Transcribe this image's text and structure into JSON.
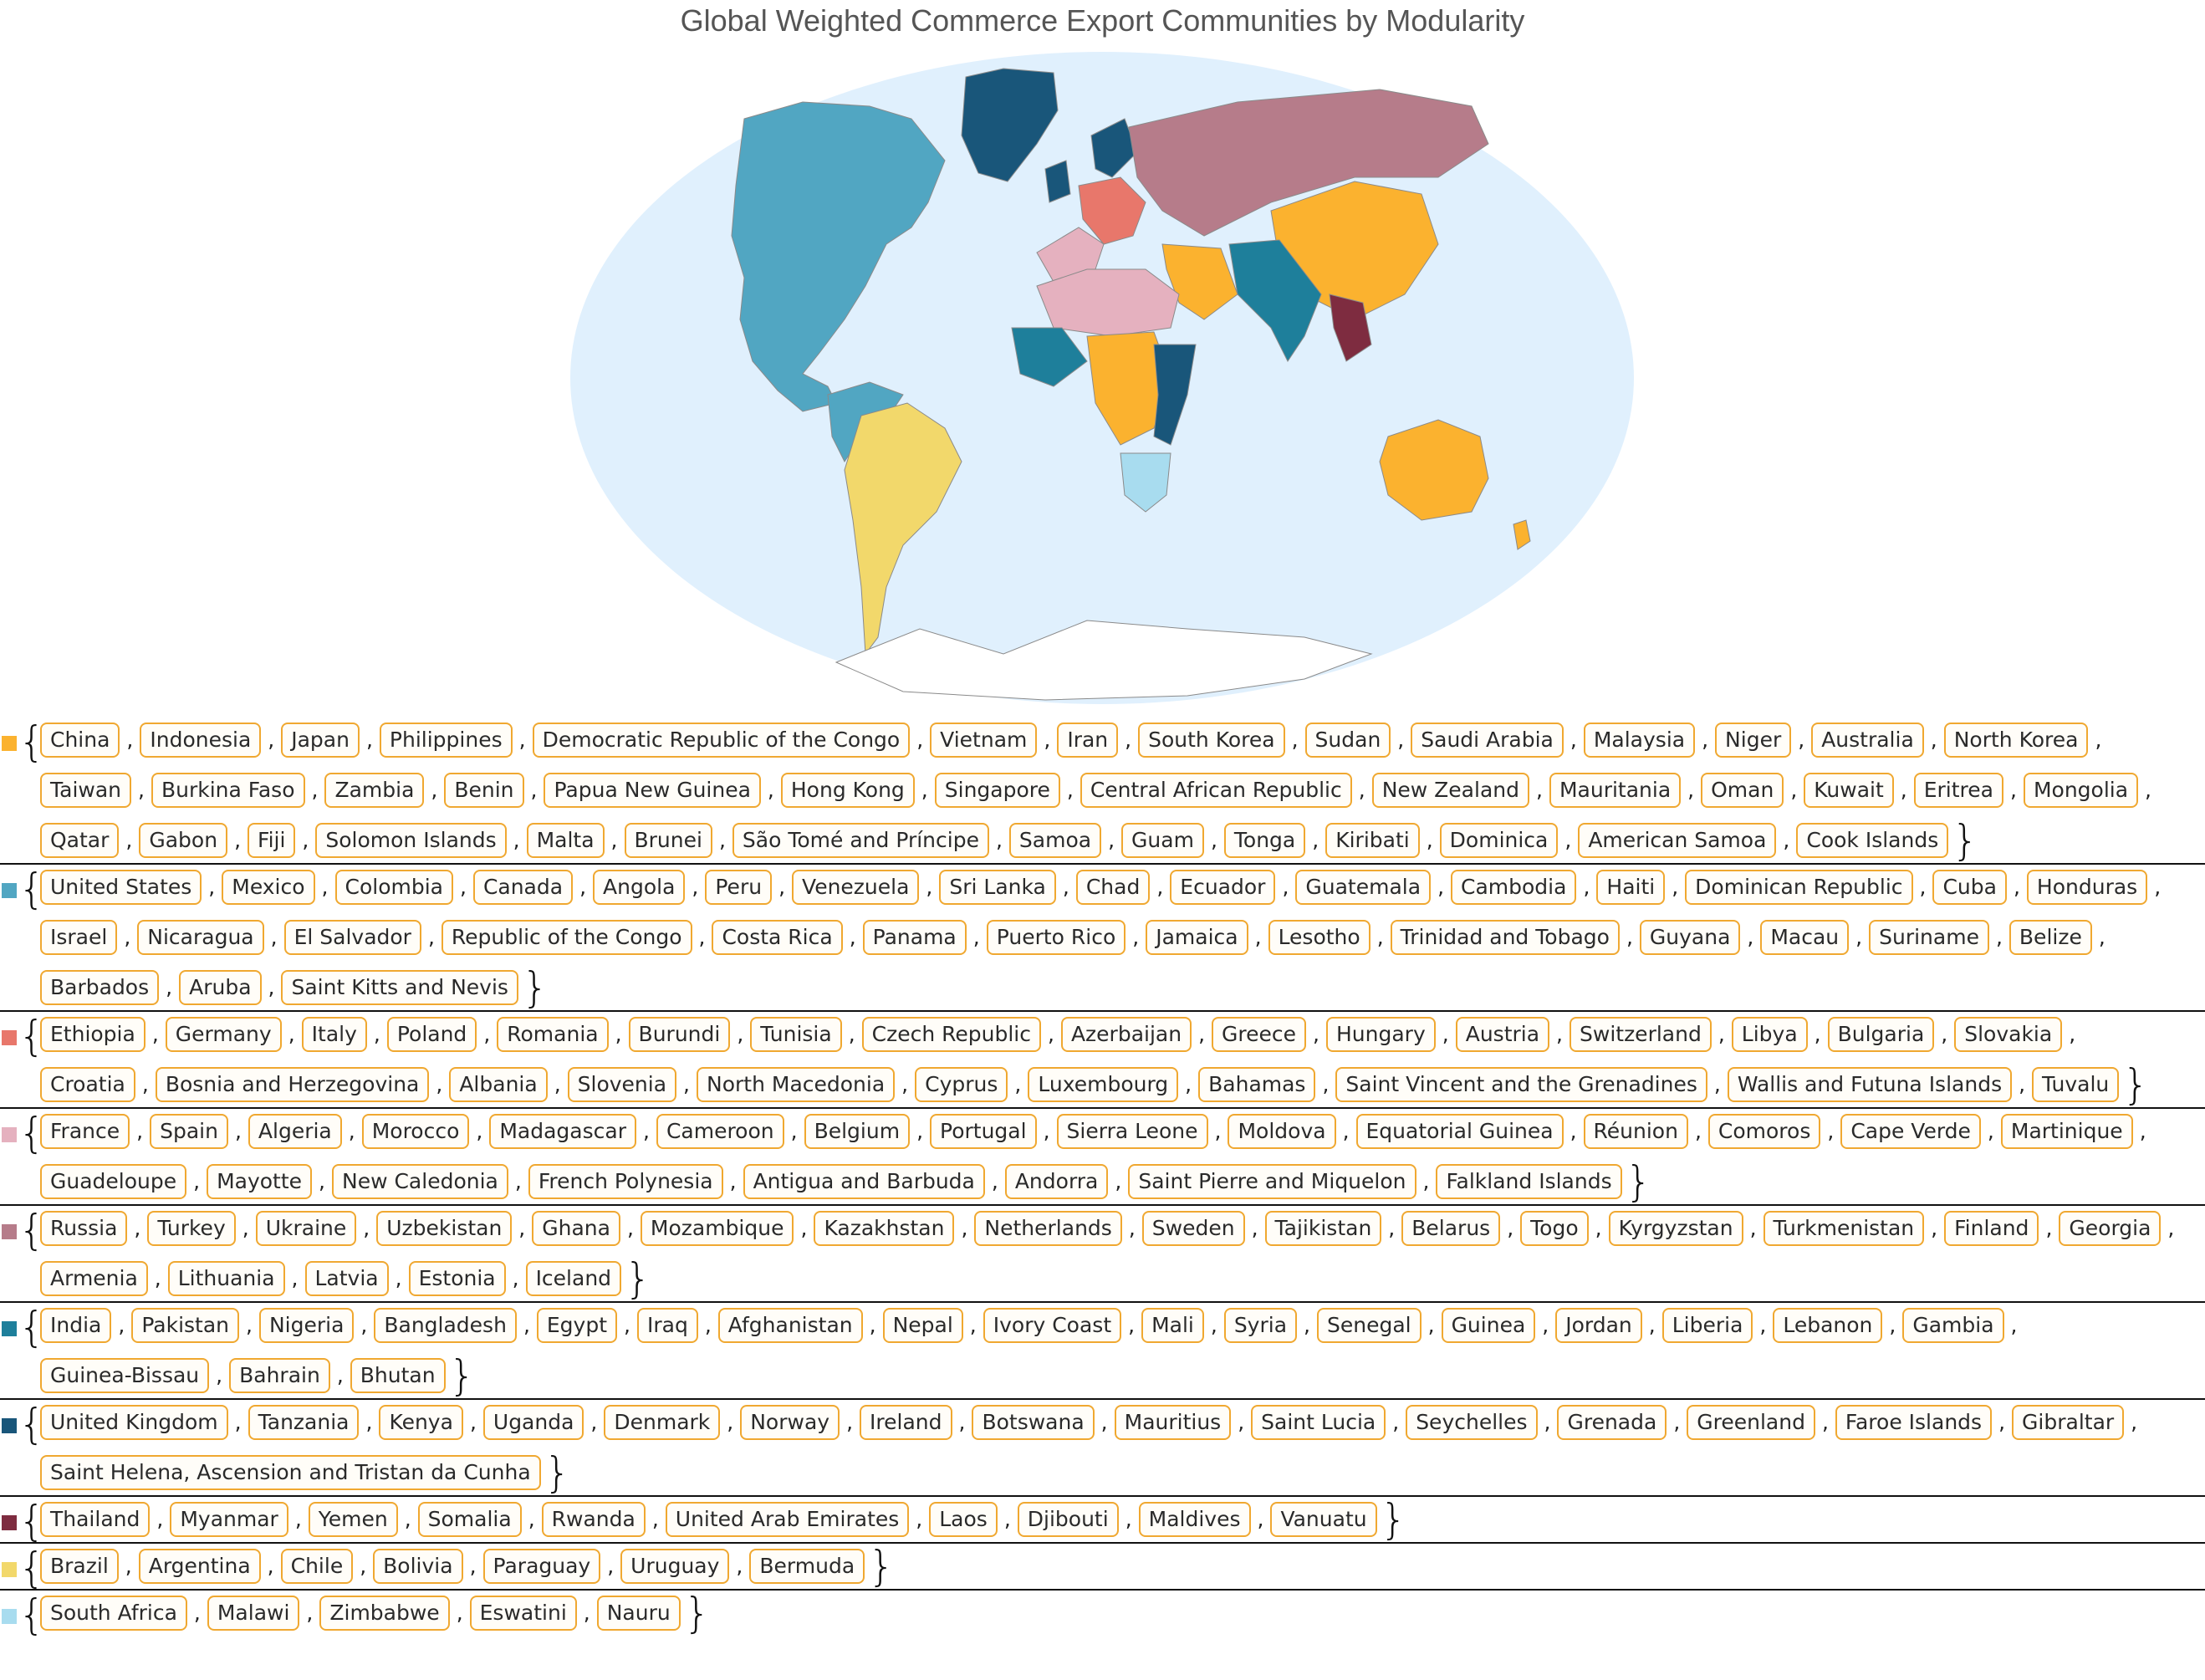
{
  "title": "Global Weighted Commerce Export Communities by Modularity",
  "map": {
    "ocean_color": "#e0f0fd",
    "land_default": "#ffffff",
    "border_color": "#8a8a8a"
  },
  "communities": [
    {
      "color": "#fbb22f",
      "countries": [
        "China",
        "Indonesia",
        "Japan",
        "Philippines",
        "Democratic Republic of the Congo",
        "Vietnam",
        "Iran",
        "South Korea",
        "Sudan",
        "Saudi Arabia",
        "Malaysia",
        "Niger",
        "Australia",
        "North Korea",
        "Taiwan",
        "Burkina Faso",
        "Zambia",
        "Benin",
        "Papua New Guinea",
        "Hong Kong",
        "Singapore",
        "Central African Republic",
        "New Zealand",
        "Mauritania",
        "Oman",
        "Kuwait",
        "Eritrea",
        "Mongolia",
        "Qatar",
        "Gabon",
        "Fiji",
        "Solomon Islands",
        "Malta",
        "Brunei",
        "São Tomé and Príncipe",
        "Samoa",
        "Guam",
        "Tonga",
        "Kiribati",
        "Dominica",
        "American Samoa",
        "Cook Islands"
      ]
    },
    {
      "color": "#51a6c2",
      "countries": [
        "United States",
        "Mexico",
        "Colombia",
        "Canada",
        "Angola",
        "Peru",
        "Venezuela",
        "Sri Lanka",
        "Chad",
        "Ecuador",
        "Guatemala",
        "Cambodia",
        "Haiti",
        "Dominican Republic",
        "Cuba",
        "Honduras",
        "Israel",
        "Nicaragua",
        "El Salvador",
        "Republic of the Congo",
        "Costa Rica",
        "Panama",
        "Puerto Rico",
        "Jamaica",
        "Lesotho",
        "Trinidad and Tobago",
        "Guyana",
        "Macau",
        "Suriname",
        "Belize",
        "Barbados",
        "Aruba",
        "Saint Kitts and Nevis"
      ]
    },
    {
      "color": "#e8776b",
      "countries": [
        "Ethiopia",
        "Germany",
        "Italy",
        "Poland",
        "Romania",
        "Burundi",
        "Tunisia",
        "Czech Republic",
        "Azerbaijan",
        "Greece",
        "Hungary",
        "Austria",
        "Switzerland",
        "Libya",
        "Bulgaria",
        "Slovakia",
        "Croatia",
        "Bosnia and Herzegovina",
        "Albania",
        "Slovenia",
        "North Macedonia",
        "Cyprus",
        "Luxembourg",
        "Bahamas",
        "Saint Vincent and the Grenadines",
        "Wallis and Futuna Islands",
        "Tuvalu"
      ]
    },
    {
      "color": "#e5b1bf",
      "countries": [
        "France",
        "Spain",
        "Algeria",
        "Morocco",
        "Madagascar",
        "Cameroon",
        "Belgium",
        "Portugal",
        "Sierra Leone",
        "Moldova",
        "Equatorial Guinea",
        "Réunion",
        "Comoros",
        "Cape Verde",
        "Martinique",
        "Guadeloupe",
        "Mayotte",
        "New Caledonia",
        "French Polynesia",
        "Antigua and Barbuda",
        "Andorra",
        "Saint Pierre and Miquelon",
        "Falkland Islands"
      ]
    },
    {
      "color": "#b67c8a",
      "countries": [
        "Russia",
        "Turkey",
        "Ukraine",
        "Uzbekistan",
        "Ghana",
        "Mozambique",
        "Kazakhstan",
        "Netherlands",
        "Sweden",
        "Tajikistan",
        "Belarus",
        "Togo",
        "Kyrgyzstan",
        "Turkmenistan",
        "Finland",
        "Georgia",
        "Armenia",
        "Lithuania",
        "Latvia",
        "Estonia",
        "Iceland"
      ]
    },
    {
      "color": "#1e7f9b",
      "countries": [
        "India",
        "Pakistan",
        "Nigeria",
        "Bangladesh",
        "Egypt",
        "Iraq",
        "Afghanistan",
        "Nepal",
        "Ivory Coast",
        "Mali",
        "Syria",
        "Senegal",
        "Guinea",
        "Jordan",
        "Liberia",
        "Lebanon",
        "Gambia",
        "Guinea-Bissau",
        "Bahrain",
        "Bhutan"
      ]
    },
    {
      "color": "#19567a",
      "countries": [
        "United Kingdom",
        "Tanzania",
        "Kenya",
        "Uganda",
        "Denmark",
        "Norway",
        "Ireland",
        "Botswana",
        "Mauritius",
        "Saint Lucia",
        "Seychelles",
        "Grenada",
        "Greenland",
        "Faroe Islands",
        "Gibraltar",
        "Saint Helena, Ascension and Tristan da Cunha"
      ]
    },
    {
      "color": "#7e2c40",
      "countries": [
        "Thailand",
        "Myanmar",
        "Yemen",
        "Somalia",
        "Rwanda",
        "United Arab Emirates",
        "Laos",
        "Djibouti",
        "Maldives",
        "Vanuatu"
      ]
    },
    {
      "color": "#f2d86b",
      "countries": [
        "Brazil",
        "Argentina",
        "Chile",
        "Bolivia",
        "Paraguay",
        "Uruguay",
        "Bermuda"
      ]
    },
    {
      "color": "#a8dcef",
      "countries": [
        "South Africa",
        "Malawi",
        "Zimbabwe",
        "Eswatini",
        "Nauru"
      ]
    }
  ]
}
